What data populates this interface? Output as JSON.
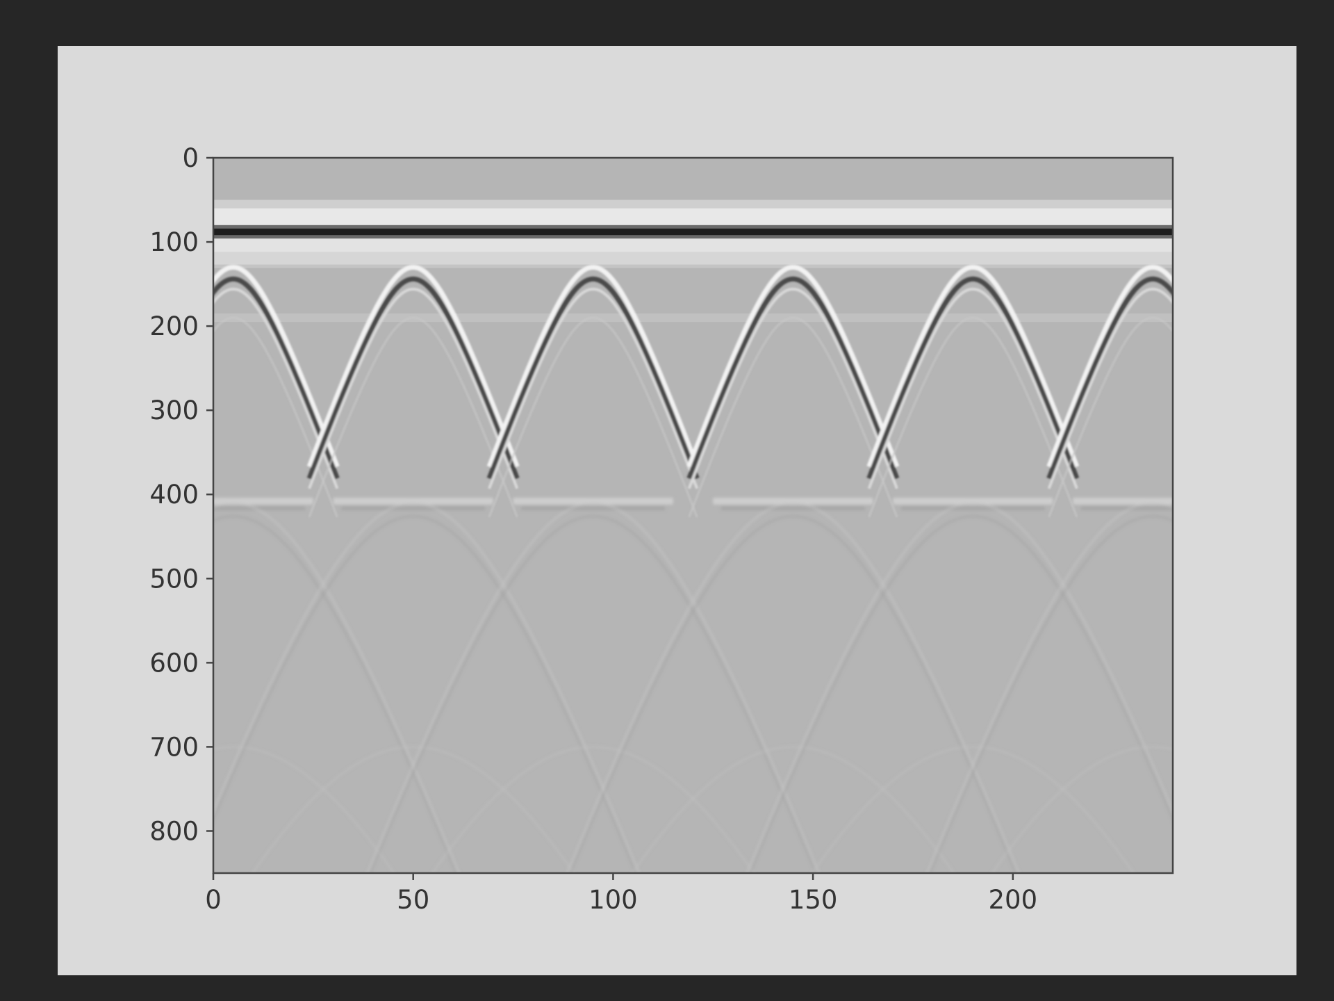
{
  "chart_data": {
    "type": "heatmap",
    "title": "",
    "xlabel": "",
    "ylabel": "",
    "colormap": "gray",
    "xlim": [
      0,
      240
    ],
    "ylim": [
      850,
      0
    ],
    "x_ticks": [
      0,
      50,
      100,
      150,
      200
    ],
    "y_ticks": [
      0,
      100,
      200,
      300,
      400,
      500,
      600,
      700,
      800
    ],
    "background_value": 0.72,
    "direct_wave": {
      "dark_band_center": 88,
      "light_band_above": 60,
      "light_band_below": 112,
      "flat_layer_top": 127
    },
    "hyperbola_apexes": [
      {
        "x": 5,
        "y": 130
      },
      {
        "x": 50,
        "y": 130
      },
      {
        "x": 95,
        "y": 130
      },
      {
        "x": 145,
        "y": 130
      },
      {
        "x": 190,
        "y": 130
      },
      {
        "x": 235,
        "y": 130
      }
    ],
    "secondary_reflector_depth": 410,
    "grid": false,
    "legend": "none"
  },
  "colors": {
    "page_background": "#262626",
    "figure_background": "#dadada",
    "axis": "#444444",
    "text": "#333333"
  }
}
